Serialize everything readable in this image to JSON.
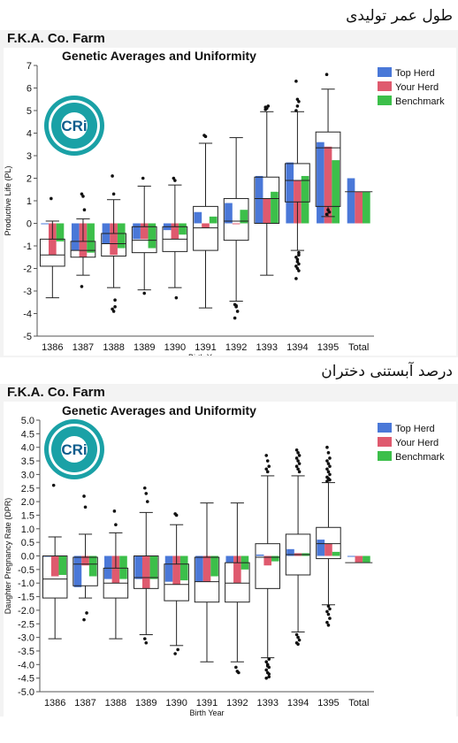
{
  "top_caption": "طول عمر تولیدی",
  "bottom_caption": "درصد آبستنی دختران",
  "colors": {
    "top_herd": "#4a78d8",
    "your_herd": "#df5a6e",
    "benchmark": "#3cbf4a"
  },
  "chart_data": [
    {
      "type": "bar",
      "farm_title": "F.K.A. Co. Farm",
      "title": "Genetic Averages and Uniformity",
      "xlabel": "Birth Year",
      "ylabel": "Productive Life (PL)",
      "ylim": [
        -5,
        7
      ],
      "yticks": [
        -5,
        -4,
        -3,
        -2,
        -1,
        0,
        1,
        2,
        3,
        4,
        5,
        6,
        7
      ],
      "categories": [
        "1386",
        "1387",
        "1388",
        "1389",
        "1390",
        "1391",
        "1392",
        "1393",
        "1394",
        "1395",
        "Total"
      ],
      "legend_position": "right",
      "series": [
        {
          "name": "Top Herd",
          "values": [
            0.0,
            -1.2,
            -0.9,
            -0.7,
            -0.3,
            0.5,
            0.9,
            2.1,
            2.7,
            3.6,
            2.0
          ]
        },
        {
          "name": "Your Herd",
          "values": [
            -1.4,
            -1.5,
            -1.4,
            -0.7,
            -0.7,
            -0.2,
            0.0,
            1.1,
            1.9,
            3.4,
            1.4
          ]
        },
        {
          "name": "Benchmark",
          "values": [
            -0.8,
            -1.3,
            -1.1,
            -1.1,
            -0.5,
            0.3,
            0.6,
            1.4,
            2.1,
            2.8,
            1.4
          ]
        }
      ],
      "boxplots": [
        {
          "q1": -1.9,
          "median": -1.4,
          "q3": -0.7,
          "whisker_low": -3.3,
          "whisker_high": 0.1,
          "outliers": [
            1.1
          ]
        },
        {
          "q1": -1.5,
          "median": -1.2,
          "q3": -0.8,
          "whisker_low": -2.3,
          "whisker_high": 0.2,
          "outliers": [
            1.3,
            1.2,
            0.6,
            -2.8
          ]
        },
        {
          "q1": -1.45,
          "median": -0.9,
          "q3": -0.45,
          "whisker_low": -2.85,
          "whisker_high": 1.05,
          "outliers": [
            2.1,
            1.3,
            -3.4,
            -3.8,
            -3.9,
            -3.7
          ]
        },
        {
          "q1": -1.3,
          "median": -0.75,
          "q3": -0.15,
          "whisker_low": -2.95,
          "whisker_high": 1.65,
          "outliers": [
            2.0,
            -3.1
          ]
        },
        {
          "q1": -1.25,
          "median": -0.7,
          "q3": -0.15,
          "whisker_low": -2.85,
          "whisker_high": 1.7,
          "outliers": [
            2.0,
            1.9,
            -3.3
          ]
        },
        {
          "q1": -1.2,
          "median": -0.2,
          "q3": 0.75,
          "whisker_low": -3.75,
          "whisker_high": 3.55,
          "outliers": [
            3.9,
            3.85
          ]
        },
        {
          "q1": -0.75,
          "median": 0.1,
          "q3": 1.1,
          "whisker_low": -3.45,
          "whisker_high": 3.8,
          "outliers": [
            -3.6,
            -3.7,
            -3.9,
            -4.2,
            -3.65
          ]
        },
        {
          "q1": 0.0,
          "median": 1.1,
          "q3": 2.05,
          "whisker_low": -2.3,
          "whisker_high": 4.95,
          "outliers": [
            5.15,
            5.1,
            5.2,
            5.05
          ]
        },
        {
          "q1": 0.95,
          "median": 1.9,
          "q3": 2.65,
          "whisker_low": -1.2,
          "whisker_high": 4.95,
          "outliers": [
            6.3,
            5.5,
            5.4,
            5.0,
            5.2,
            -1.3,
            -1.5,
            -1.7,
            -1.8,
            -1.9,
            -2.0,
            -2.1,
            -2.45,
            -1.6,
            -1.4
          ]
        },
        {
          "q1": 0.75,
          "median": 3.35,
          "q3": 4.05,
          "whisker_low": 0.3,
          "whisker_high": 5.95,
          "outliers": [
            6.6,
            0.6,
            0.5,
            0.4
          ]
        },
        null
      ]
    },
    {
      "type": "bar",
      "farm_title": "F.K.A. Co. Farm",
      "title": "Genetic Averages and Uniformity",
      "xlabel": "Birth Year",
      "ylabel": "Daughter Pregnancy Rate (DPR)",
      "ylim": [
        -5,
        5
      ],
      "yticks": [
        -5.0,
        -4.5,
        -4.0,
        -3.5,
        -3.0,
        -2.5,
        -2.0,
        -1.5,
        -1.0,
        -0.5,
        0.0,
        0.5,
        1.0,
        1.5,
        2.0,
        2.5,
        3.0,
        3.5,
        4.0,
        4.5,
        5.0
      ],
      "categories": [
        "1386",
        "1387",
        "1388",
        "1389",
        "1390",
        "1391",
        "1392",
        "1393",
        "1394",
        "1395",
        "Total"
      ],
      "legend_position": "right",
      "series": [
        {
          "name": "Top Herd",
          "values": [
            0.0,
            -1.15,
            -0.85,
            -0.85,
            -0.95,
            -0.95,
            -0.25,
            0.05,
            0.25,
            0.6,
            0.0
          ]
        },
        {
          "name": "Your Herd",
          "values": [
            -0.75,
            -0.35,
            -1.0,
            -1.2,
            -1.05,
            -0.95,
            -1.0,
            -0.35,
            0.1,
            0.45,
            -0.25
          ]
        },
        {
          "name": "Benchmark",
          "values": [
            -0.7,
            -0.75,
            -0.85,
            -0.85,
            -0.9,
            -0.75,
            -0.5,
            -0.2,
            0.1,
            0.15,
            -0.25
          ]
        }
      ],
      "boxplots": [
        {
          "q1": -1.55,
          "median": -0.85,
          "q3": 0.0,
          "whisker_low": -3.05,
          "whisker_high": 0.7,
          "outliers": [
            2.6
          ]
        },
        {
          "q1": -1.1,
          "median": -0.3,
          "q3": -0.05,
          "whisker_low": -1.55,
          "whisker_high": 0.8,
          "outliers": [
            2.2,
            1.8,
            -2.1,
            -2.35
          ]
        },
        {
          "q1": -1.55,
          "median": -1.0,
          "q3": -0.45,
          "whisker_low": -3.05,
          "whisker_high": 0.85,
          "outliers": [
            1.65,
            1.15
          ]
        },
        {
          "q1": -1.2,
          "median": -0.8,
          "q3": 0.0,
          "whisker_low": -2.9,
          "whisker_high": 1.6,
          "outliers": [
            2.5,
            2.3,
            2.0,
            -3.05,
            -3.2
          ]
        },
        {
          "q1": -1.65,
          "median": -1.05,
          "q3": -0.3,
          "whisker_low": -3.3,
          "whisker_high": 1.15,
          "outliers": [
            1.55,
            1.5,
            -3.45,
            -3.6
          ]
        },
        {
          "q1": -1.7,
          "median": -0.95,
          "q3": -0.05,
          "whisker_low": -3.9,
          "whisker_high": 1.95,
          "outliers": []
        },
        {
          "q1": -1.7,
          "median": -1.0,
          "q3": -0.25,
          "whisker_low": -3.9,
          "whisker_high": 1.95,
          "outliers": [
            -4.1,
            -4.25,
            -4.3
          ]
        },
        {
          "q1": -1.2,
          "median": -0.05,
          "q3": 0.45,
          "whisker_low": -3.75,
          "whisker_high": 2.95,
          "outliers": [
            3.7,
            3.5,
            3.3,
            3.2,
            3.1,
            -3.8,
            -3.9,
            -4.0,
            -4.1,
            -4.2,
            -4.3,
            -4.45,
            -4.5,
            -4.05,
            -4.35
          ]
        },
        {
          "q1": -0.7,
          "median": 0.05,
          "q3": 0.8,
          "whisker_low": -2.8,
          "whisker_high": 2.95,
          "outliers": [
            3.9,
            3.8,
            3.7,
            3.6,
            3.5,
            3.4,
            3.3,
            3.2,
            3.1,
            -2.9,
            -3.0,
            -3.1,
            -3.2,
            -3.25
          ]
        },
        {
          "q1": -0.1,
          "median": 0.45,
          "q3": 1.05,
          "whisker_low": -1.8,
          "whisker_high": 2.7,
          "outliers": [
            4.0,
            3.8,
            3.6,
            3.5,
            3.4,
            3.3,
            3.2,
            3.1,
            3.0,
            2.9,
            2.85,
            2.8,
            2.75,
            -1.85,
            -1.95,
            -2.05,
            -2.15,
            -2.3,
            -2.45,
            -2.55
          ]
        },
        null
      ]
    }
  ]
}
